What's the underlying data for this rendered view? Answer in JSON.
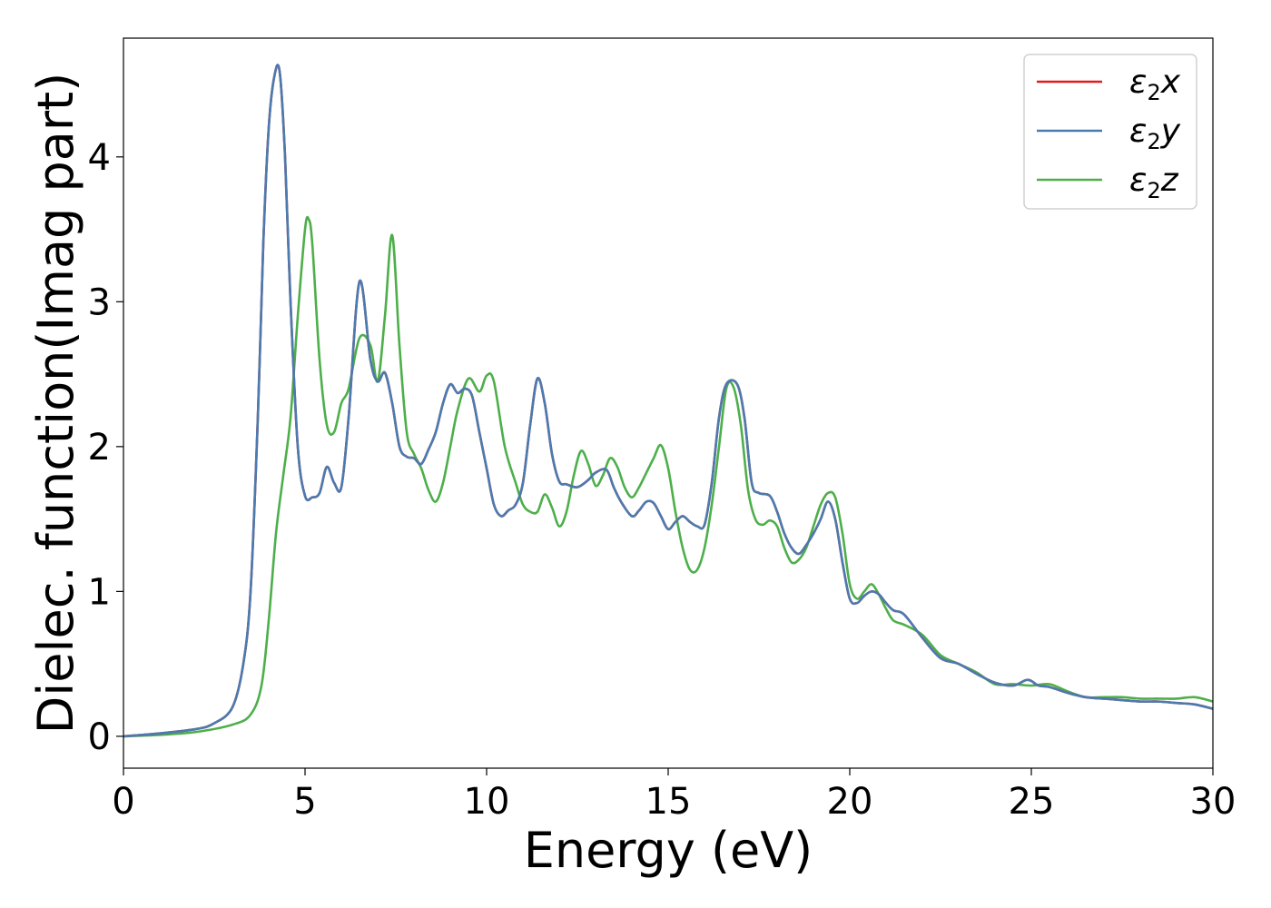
{
  "chart_data": {
    "type": "line",
    "xlabel": "Energy (eV)",
    "ylabel": "Dielec. function(Imag part)",
    "xlim": [
      0,
      30
    ],
    "ylim": [
      -0.22,
      4.82
    ],
    "xticks": [
      0,
      5,
      10,
      15,
      20,
      25,
      30
    ],
    "yticks": [
      0,
      1,
      2,
      3,
      4
    ],
    "grid": false,
    "legend_position": "top-right",
    "series": [
      {
        "name": "ε2x",
        "symbol": "ε",
        "subscript": "2",
        "axis": "x",
        "color": "#e41a1c",
        "x": [
          0,
          1,
          2,
          2.5,
          3,
          3.3,
          3.5,
          3.7,
          3.85,
          4.0,
          4.15,
          4.3,
          4.45,
          4.6,
          4.8,
          5.0,
          5.2,
          5.4,
          5.6,
          5.8,
          6.0,
          6.2,
          6.5,
          6.8,
          7.0,
          7.2,
          7.4,
          7.6,
          7.8,
          8.0,
          8.2,
          8.4,
          8.6,
          8.8,
          9.0,
          9.2,
          9.4,
          9.6,
          9.8,
          10.0,
          10.2,
          10.4,
          10.6,
          10.8,
          11.0,
          11.2,
          11.4,
          11.6,
          11.8,
          12.0,
          12.2,
          12.5,
          12.8,
          13.0,
          13.3,
          13.5,
          13.7,
          14.0,
          14.2,
          14.4,
          14.6,
          14.8,
          15.0,
          15.2,
          15.4,
          15.6,
          15.8,
          16.0,
          16.2,
          16.4,
          16.6,
          16.9,
          17.1,
          17.3,
          17.5,
          17.8,
          18.0,
          18.2,
          18.4,
          18.6,
          18.8,
          19.0,
          19.2,
          19.4,
          19.6,
          19.8,
          20.0,
          20.2,
          20.4,
          20.6,
          20.8,
          21.0,
          21.2,
          21.5,
          22.0,
          22.5,
          23.0,
          23.5,
          24.0,
          24.5,
          24.9,
          25.2,
          25.5,
          26.0,
          26.5,
          27.0,
          27.5,
          28.0,
          28.5,
          29.0,
          29.5,
          30.0
        ],
        "y": [
          0.0,
          0.02,
          0.05,
          0.09,
          0.2,
          0.5,
          1.0,
          2.2,
          3.4,
          4.2,
          4.55,
          4.59,
          4.0,
          3.0,
          2.0,
          1.66,
          1.65,
          1.68,
          1.86,
          1.75,
          1.72,
          2.2,
          3.14,
          2.6,
          2.45,
          2.51,
          2.3,
          2.0,
          1.93,
          1.92,
          1.88,
          1.98,
          2.1,
          2.3,
          2.43,
          2.37,
          2.4,
          2.35,
          2.1,
          1.85,
          1.6,
          1.52,
          1.56,
          1.6,
          1.75,
          2.15,
          2.47,
          2.3,
          1.95,
          1.76,
          1.74,
          1.72,
          1.77,
          1.82,
          1.84,
          1.72,
          1.62,
          1.52,
          1.56,
          1.62,
          1.61,
          1.52,
          1.43,
          1.48,
          1.52,
          1.48,
          1.45,
          1.46,
          1.75,
          2.2,
          2.43,
          2.43,
          2.2,
          1.75,
          1.68,
          1.66,
          1.55,
          1.4,
          1.3,
          1.26,
          1.32,
          1.4,
          1.5,
          1.62,
          1.5,
          1.2,
          0.95,
          0.92,
          0.97,
          1.0,
          0.98,
          0.92,
          0.87,
          0.84,
          0.68,
          0.54,
          0.5,
          0.43,
          0.37,
          0.35,
          0.39,
          0.35,
          0.34,
          0.3,
          0.27,
          0.26,
          0.25,
          0.24,
          0.24,
          0.23,
          0.22,
          0.19
        ]
      },
      {
        "name": "ε2y",
        "symbol": "ε",
        "subscript": "2",
        "axis": "y",
        "color": "#4a7bb0",
        "x": [
          0,
          1,
          2,
          2.5,
          3,
          3.3,
          3.5,
          3.7,
          3.85,
          4.0,
          4.15,
          4.3,
          4.45,
          4.6,
          4.8,
          5.0,
          5.2,
          5.4,
          5.6,
          5.8,
          6.0,
          6.2,
          6.5,
          6.8,
          7.0,
          7.2,
          7.4,
          7.6,
          7.8,
          8.0,
          8.2,
          8.4,
          8.6,
          8.8,
          9.0,
          9.2,
          9.4,
          9.6,
          9.8,
          10.0,
          10.2,
          10.4,
          10.6,
          10.8,
          11.0,
          11.2,
          11.4,
          11.6,
          11.8,
          12.0,
          12.2,
          12.5,
          12.8,
          13.0,
          13.3,
          13.5,
          13.7,
          14.0,
          14.2,
          14.4,
          14.6,
          14.8,
          15.0,
          15.2,
          15.4,
          15.6,
          15.8,
          16.0,
          16.2,
          16.4,
          16.6,
          16.9,
          17.1,
          17.3,
          17.5,
          17.8,
          18.0,
          18.2,
          18.4,
          18.6,
          18.8,
          19.0,
          19.2,
          19.4,
          19.6,
          19.8,
          20.0,
          20.2,
          20.4,
          20.6,
          20.8,
          21.0,
          21.2,
          21.5,
          22.0,
          22.5,
          23.0,
          23.5,
          24.0,
          24.5,
          24.9,
          25.2,
          25.5,
          26.0,
          26.5,
          27.0,
          27.5,
          28.0,
          28.5,
          29.0,
          29.5,
          30.0
        ],
        "y": [
          0.0,
          0.02,
          0.05,
          0.09,
          0.2,
          0.5,
          1.0,
          2.2,
          3.4,
          4.2,
          4.55,
          4.59,
          4.0,
          3.0,
          2.0,
          1.66,
          1.65,
          1.68,
          1.86,
          1.75,
          1.72,
          2.2,
          3.14,
          2.6,
          2.45,
          2.51,
          2.3,
          2.0,
          1.93,
          1.92,
          1.88,
          1.98,
          2.1,
          2.3,
          2.43,
          2.37,
          2.4,
          2.35,
          2.1,
          1.85,
          1.6,
          1.52,
          1.56,
          1.6,
          1.75,
          2.15,
          2.47,
          2.3,
          1.95,
          1.76,
          1.74,
          1.72,
          1.77,
          1.82,
          1.84,
          1.72,
          1.62,
          1.52,
          1.56,
          1.62,
          1.61,
          1.52,
          1.43,
          1.48,
          1.52,
          1.48,
          1.45,
          1.46,
          1.75,
          2.2,
          2.43,
          2.43,
          2.2,
          1.75,
          1.68,
          1.66,
          1.55,
          1.4,
          1.3,
          1.26,
          1.32,
          1.4,
          1.5,
          1.62,
          1.5,
          1.2,
          0.95,
          0.92,
          0.97,
          1.0,
          0.98,
          0.92,
          0.87,
          0.84,
          0.68,
          0.54,
          0.5,
          0.43,
          0.37,
          0.35,
          0.39,
          0.35,
          0.34,
          0.3,
          0.27,
          0.26,
          0.25,
          0.24,
          0.24,
          0.23,
          0.22,
          0.19
        ]
      },
      {
        "name": "ε2z",
        "symbol": "ε",
        "subscript": "2",
        "axis": "z",
        "color": "#4daf4a",
        "x": [
          0,
          1,
          2,
          3,
          3.5,
          3.8,
          4.0,
          4.2,
          4.4,
          4.6,
          4.8,
          5.0,
          5.1,
          5.2,
          5.4,
          5.6,
          5.8,
          6.0,
          6.2,
          6.5,
          6.8,
          7.0,
          7.2,
          7.4,
          7.6,
          7.8,
          8.0,
          8.2,
          8.4,
          8.6,
          8.8,
          9.0,
          9.2,
          9.5,
          9.8,
          10.0,
          10.2,
          10.5,
          10.8,
          11.0,
          11.2,
          11.4,
          11.6,
          11.8,
          12.0,
          12.2,
          12.4,
          12.6,
          12.8,
          13.0,
          13.2,
          13.4,
          13.6,
          13.8,
          14.0,
          14.2,
          14.4,
          14.6,
          14.8,
          15.0,
          15.2,
          15.4,
          15.6,
          15.8,
          16.0,
          16.2,
          16.4,
          16.6,
          16.8,
          17.0,
          17.2,
          17.4,
          17.6,
          17.8,
          18.0,
          18.2,
          18.4,
          18.6,
          18.8,
          19.0,
          19.2,
          19.4,
          19.6,
          19.8,
          20.0,
          20.2,
          20.4,
          20.6,
          20.8,
          21.0,
          21.2,
          21.5,
          22.0,
          22.5,
          23.0,
          23.5,
          24.0,
          24.5,
          25.0,
          25.5,
          26.0,
          26.5,
          27.0,
          27.5,
          28.0,
          28.5,
          29.0,
          29.5,
          30.0
        ],
        "y": [
          0.0,
          0.01,
          0.03,
          0.08,
          0.15,
          0.35,
          0.8,
          1.4,
          1.8,
          2.2,
          2.9,
          3.5,
          3.57,
          3.4,
          2.6,
          2.15,
          2.1,
          2.3,
          2.4,
          2.75,
          2.7,
          2.45,
          2.9,
          3.46,
          2.7,
          2.1,
          1.95,
          1.85,
          1.7,
          1.62,
          1.75,
          2.0,
          2.25,
          2.47,
          2.38,
          2.49,
          2.45,
          2.0,
          1.75,
          1.6,
          1.55,
          1.55,
          1.67,
          1.58,
          1.45,
          1.55,
          1.8,
          1.97,
          1.88,
          1.73,
          1.8,
          1.92,
          1.86,
          1.72,
          1.65,
          1.72,
          1.82,
          1.92,
          2.01,
          1.85,
          1.55,
          1.3,
          1.15,
          1.15,
          1.3,
          1.6,
          2.0,
          2.4,
          2.41,
          2.15,
          1.7,
          1.5,
          1.46,
          1.49,
          1.45,
          1.3,
          1.2,
          1.22,
          1.3,
          1.45,
          1.6,
          1.68,
          1.65,
          1.4,
          1.05,
          0.95,
          1.0,
          1.05,
          0.98,
          0.88,
          0.8,
          0.77,
          0.7,
          0.56,
          0.5,
          0.44,
          0.36,
          0.36,
          0.35,
          0.36,
          0.31,
          0.27,
          0.27,
          0.27,
          0.26,
          0.26,
          0.26,
          0.27,
          0.24
        ]
      }
    ]
  }
}
